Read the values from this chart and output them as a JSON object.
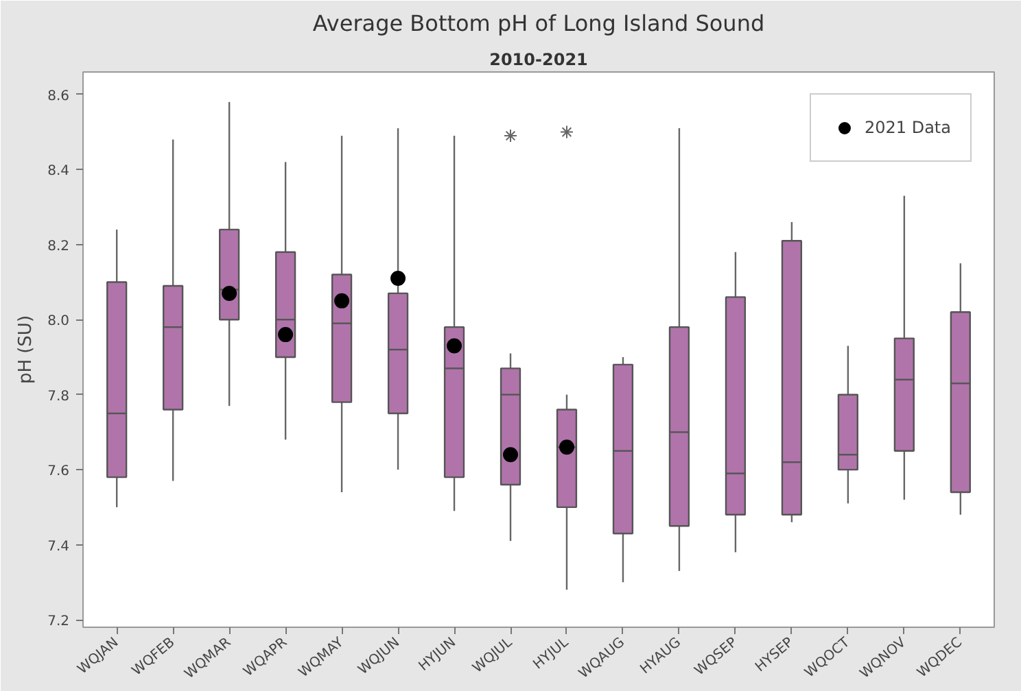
{
  "chart_data": {
    "type": "box",
    "title": "Average Bottom pH of Long Island Sound",
    "subtitle": "2010-2021",
    "ylabel": "pH (SU)",
    "categories": [
      "WQJAN",
      "WQFEB",
      "WQMAR",
      "WQAPR",
      "WQMAY",
      "WQJUN",
      "HYJUN",
      "WQJUL",
      "HYJUL",
      "WQAUG",
      "HYAUG",
      "WQSEP",
      "HYSEP",
      "WQOCT",
      "WQNOV",
      "WQDEC"
    ],
    "ylim": [
      7.18,
      8.66
    ],
    "yticks": [
      7.2,
      7.4,
      7.6,
      7.8,
      {
        "value": 8,
        "label": "8.0"
      },
      8.2,
      8.4,
      8.6
    ],
    "grid": false,
    "legend": "top right",
    "series": [
      {
        "color": "#b074aa",
        "boxes": [
          {
            "low": 7.5,
            "q1": 7.58,
            "median": 7.75,
            "q3": 8.1,
            "high": 8.24
          },
          {
            "low": 7.57,
            "q1": 7.76,
            "median": 7.98,
            "q3": 8.09,
            "high": 8.48
          },
          {
            "low": 7.77,
            "q1": 8.0,
            "median": 8.08,
            "q3": 8.24,
            "high": 8.58
          },
          {
            "low": 7.68,
            "q1": 7.9,
            "median": 8.0,
            "q3": 8.18,
            "high": 8.42
          },
          {
            "low": 7.54,
            "q1": 7.78,
            "median": 7.99,
            "q3": 8.12,
            "high": 8.49
          },
          {
            "low": 7.6,
            "q1": 7.75,
            "median": 7.92,
            "q3": 8.07,
            "high": 8.51
          },
          {
            "low": 7.49,
            "q1": 7.58,
            "median": 7.87,
            "q3": 7.98,
            "high": 8.49
          },
          {
            "low": 7.41,
            "q1": 7.56,
            "median": 7.8,
            "q3": 7.87,
            "high": 7.91,
            "outliers": [
              8.49
            ]
          },
          {
            "low": 7.28,
            "q1": 7.5,
            "median": 7.66,
            "q3": 7.76,
            "high": 7.8,
            "outliers": [
              8.5
            ]
          },
          {
            "low": 7.3,
            "q1": 7.43,
            "median": 7.65,
            "q3": 7.88,
            "high": 7.9
          },
          {
            "low": 7.33,
            "q1": 7.45,
            "median": 7.7,
            "q3": 7.98,
            "high": 8.51
          },
          {
            "low": 7.38,
            "q1": 7.48,
            "median": 7.59,
            "q3": 8.06,
            "high": 8.18
          },
          {
            "low": 7.46,
            "q1": 7.48,
            "median": 7.62,
            "q3": 8.21,
            "high": 8.26
          },
          {
            "low": 7.51,
            "q1": 7.6,
            "median": 7.64,
            "q3": 7.8,
            "high": 7.93
          },
          {
            "low": 7.52,
            "q1": 7.65,
            "median": 7.84,
            "q3": 7.95,
            "high": 8.33
          },
          {
            "low": 7.48,
            "q1": 7.54,
            "median": 7.83,
            "q3": 8.02,
            "high": 8.15
          }
        ]
      },
      {
        "type": "scatter",
        "name": "2021 Data",
        "color": "#000000",
        "marker": "circle",
        "x": [
          "WQMAR",
          "WQAPR",
          "WQMAY",
          "WQJUN",
          "HYJUN",
          "WQJUL",
          "HYJUL"
        ],
        "values": [
          8.07,
          7.96,
          8.05,
          8.11,
          7.93,
          7.64,
          7.66
        ]
      }
    ]
  }
}
